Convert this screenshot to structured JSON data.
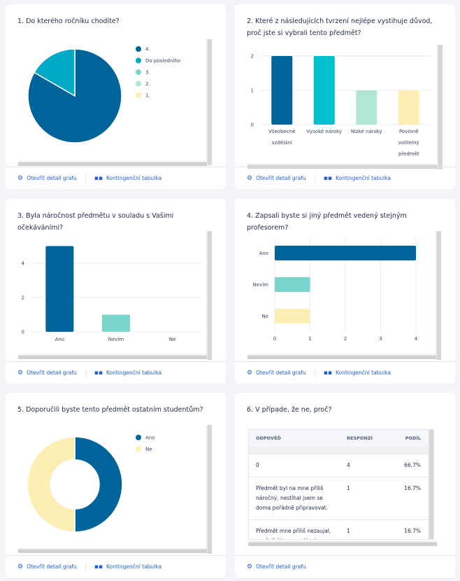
{
  "footer": {
    "detail": "Otevřít detail grafu",
    "table": "Kontingenční tabulka"
  },
  "colors": {
    "dark": "#00639a",
    "cyan": "#00a9c6",
    "teal": "#78d6cd",
    "mint": "#b2e6d4",
    "yellow": "#fdefb3",
    "link": "#1f5fd6"
  },
  "cards": [
    {
      "title": "1. Do kterého ročníku chodíte?"
    },
    {
      "title": "2. Které z následujících tvrzení nejlépe vystihuje důvod, proč jste si vybrali tento předmět?"
    },
    {
      "title": "3. Byla náročnost předmětu v souladu s Vašimi očekáváními?"
    },
    {
      "title": "4. Zapsali byste si jiný předmět vedený stejným profesorem?"
    },
    {
      "title": "5. Doporučili byste tento předmět ostatním studentům?"
    },
    {
      "title": "6. V případe, že ne, proč?"
    }
  ],
  "chart_data": [
    {
      "type": "pie",
      "categories": [
        "4.",
        "Do posledního",
        "3.",
        "2.",
        "1."
      ],
      "values": [
        5,
        1,
        0,
        0,
        0
      ],
      "colors": [
        "#00639a",
        "#00a9c6",
        "#78d6cd",
        "#b2e6d4",
        "#fdefb3"
      ],
      "legend": "right"
    },
    {
      "type": "bar",
      "categories": [
        "Všeobecné vzdělání",
        "Vysoké nároky",
        "Nízké nároky",
        "Povinně volitelný předmět"
      ],
      "values": [
        2,
        2,
        1,
        1
      ],
      "colors": [
        "#00639a",
        "#00c1cc",
        "#b2e6d4",
        "#fdefb3"
      ],
      "yticks": [
        0,
        1,
        2
      ],
      "ylim": [
        0,
        2
      ],
      "grid": true
    },
    {
      "type": "bar",
      "categories": [
        "Ano",
        "Nevím",
        "Ne"
      ],
      "values": [
        5,
        1,
        0
      ],
      "colors": [
        "#00639a",
        "#78d6cd",
        "#fdefb3"
      ],
      "yticks": [
        0,
        2,
        4
      ],
      "ylim": [
        0,
        5
      ],
      "grid": true
    },
    {
      "type": "bar",
      "orientation": "horizontal",
      "categories": [
        "Ano",
        "Nevím",
        "Ne"
      ],
      "values": [
        4,
        1,
        1
      ],
      "colors": [
        "#00639a",
        "#78d6cd",
        "#fdefb3"
      ],
      "xticks": [
        0,
        1,
        2,
        3,
        4
      ],
      "xlim": [
        0,
        4
      ],
      "grid": true
    },
    {
      "type": "pie",
      "donut": true,
      "categories": [
        "Ano",
        "Ne"
      ],
      "values": [
        3,
        3
      ],
      "colors": [
        "#00639a",
        "#fdefb3"
      ],
      "legend": "right"
    },
    {
      "type": "table",
      "columns": [
        "ODPOVĚĎ",
        "RESPONZÍ",
        "PODÍL"
      ],
      "rows": [
        [
          "0",
          "4",
          "66.7%"
        ],
        [
          "Předmět byl na mne příliš náročný, nestíhal jsem se doma pořádně připravovat.",
          "1",
          "16.7%"
        ],
        [
          "Předmět mne příliš nezaujal, vyučující ho nepodával zajímavě.",
          "1",
          "16.7%"
        ]
      ]
    }
  ]
}
